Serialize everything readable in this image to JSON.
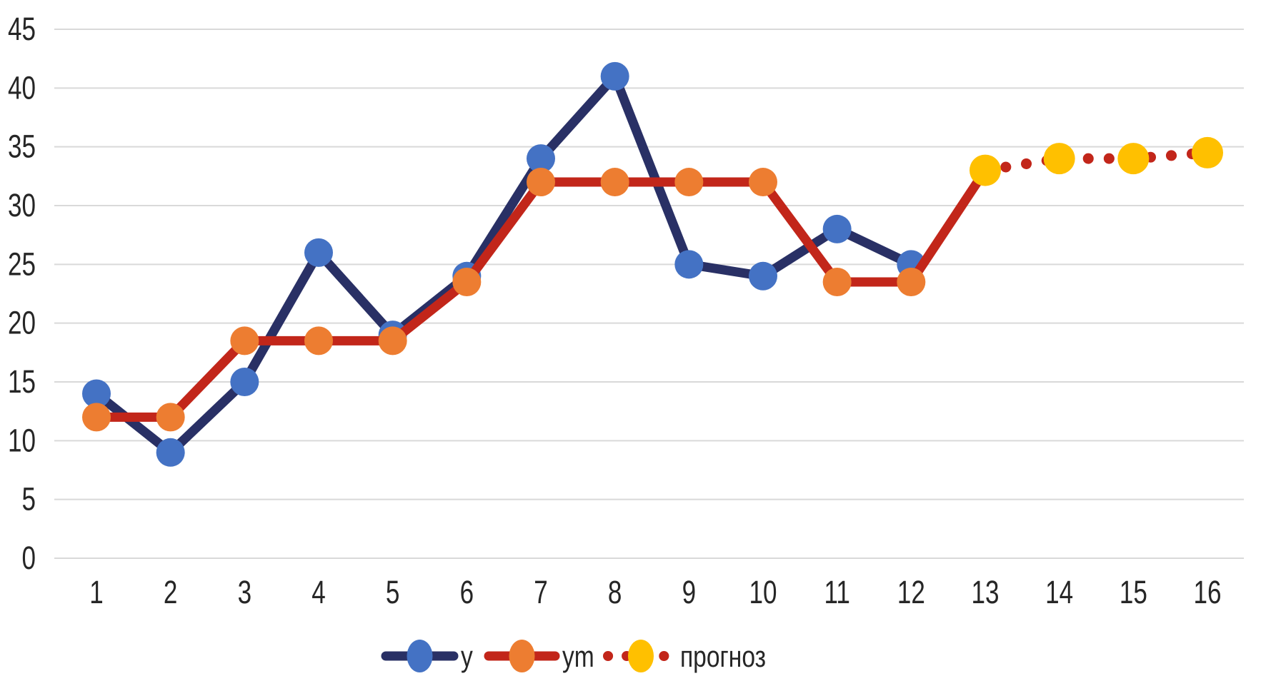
{
  "chart_data": {
    "type": "line",
    "x_categories": [
      1,
      2,
      3,
      4,
      5,
      6,
      7,
      8,
      9,
      10,
      11,
      12,
      13,
      14,
      15,
      16
    ],
    "yticks": [
      0,
      5,
      10,
      15,
      20,
      25,
      30,
      35,
      40,
      45
    ],
    "ylim": [
      0,
      45
    ],
    "grid": true,
    "grid_color": "#D9D9D9",
    "text_color": "#262626",
    "legend_position": "bottom",
    "series": [
      {
        "name": "y",
        "type": "line",
        "line_style": "solid",
        "line_color": "#293065",
        "marker_color": "#4472C4",
        "x": [
          1,
          2,
          3,
          4,
          5,
          6,
          7,
          8,
          9,
          10,
          11,
          12
        ],
        "values": [
          14,
          9,
          15,
          26,
          19,
          24,
          34,
          41,
          25,
          24,
          28,
          25
        ]
      },
      {
        "name": "ym",
        "type": "line",
        "line_style": "solid",
        "line_color": "#C2261A",
        "marker_color": "#ED7D31",
        "x": [
          1,
          2,
          3,
          4,
          5,
          6,
          7,
          8,
          9,
          10,
          11,
          12,
          13
        ],
        "values": [
          12,
          12,
          18.5,
          18.5,
          18.5,
          23.5,
          32,
          32,
          32,
          32,
          23.5,
          23.5,
          33
        ],
        "markers_through": 12
      },
      {
        "name": "прогноз",
        "type": "line",
        "line_style": "dotted",
        "line_color": "#C2261A",
        "marker_color": "#FFC000",
        "x": [
          13,
          14,
          15,
          16
        ],
        "values": [
          33,
          34,
          34,
          34.5
        ]
      }
    ],
    "legend": [
      {
        "label": "y"
      },
      {
        "label": "ym"
      },
      {
        "label": "прогноз"
      }
    ]
  }
}
